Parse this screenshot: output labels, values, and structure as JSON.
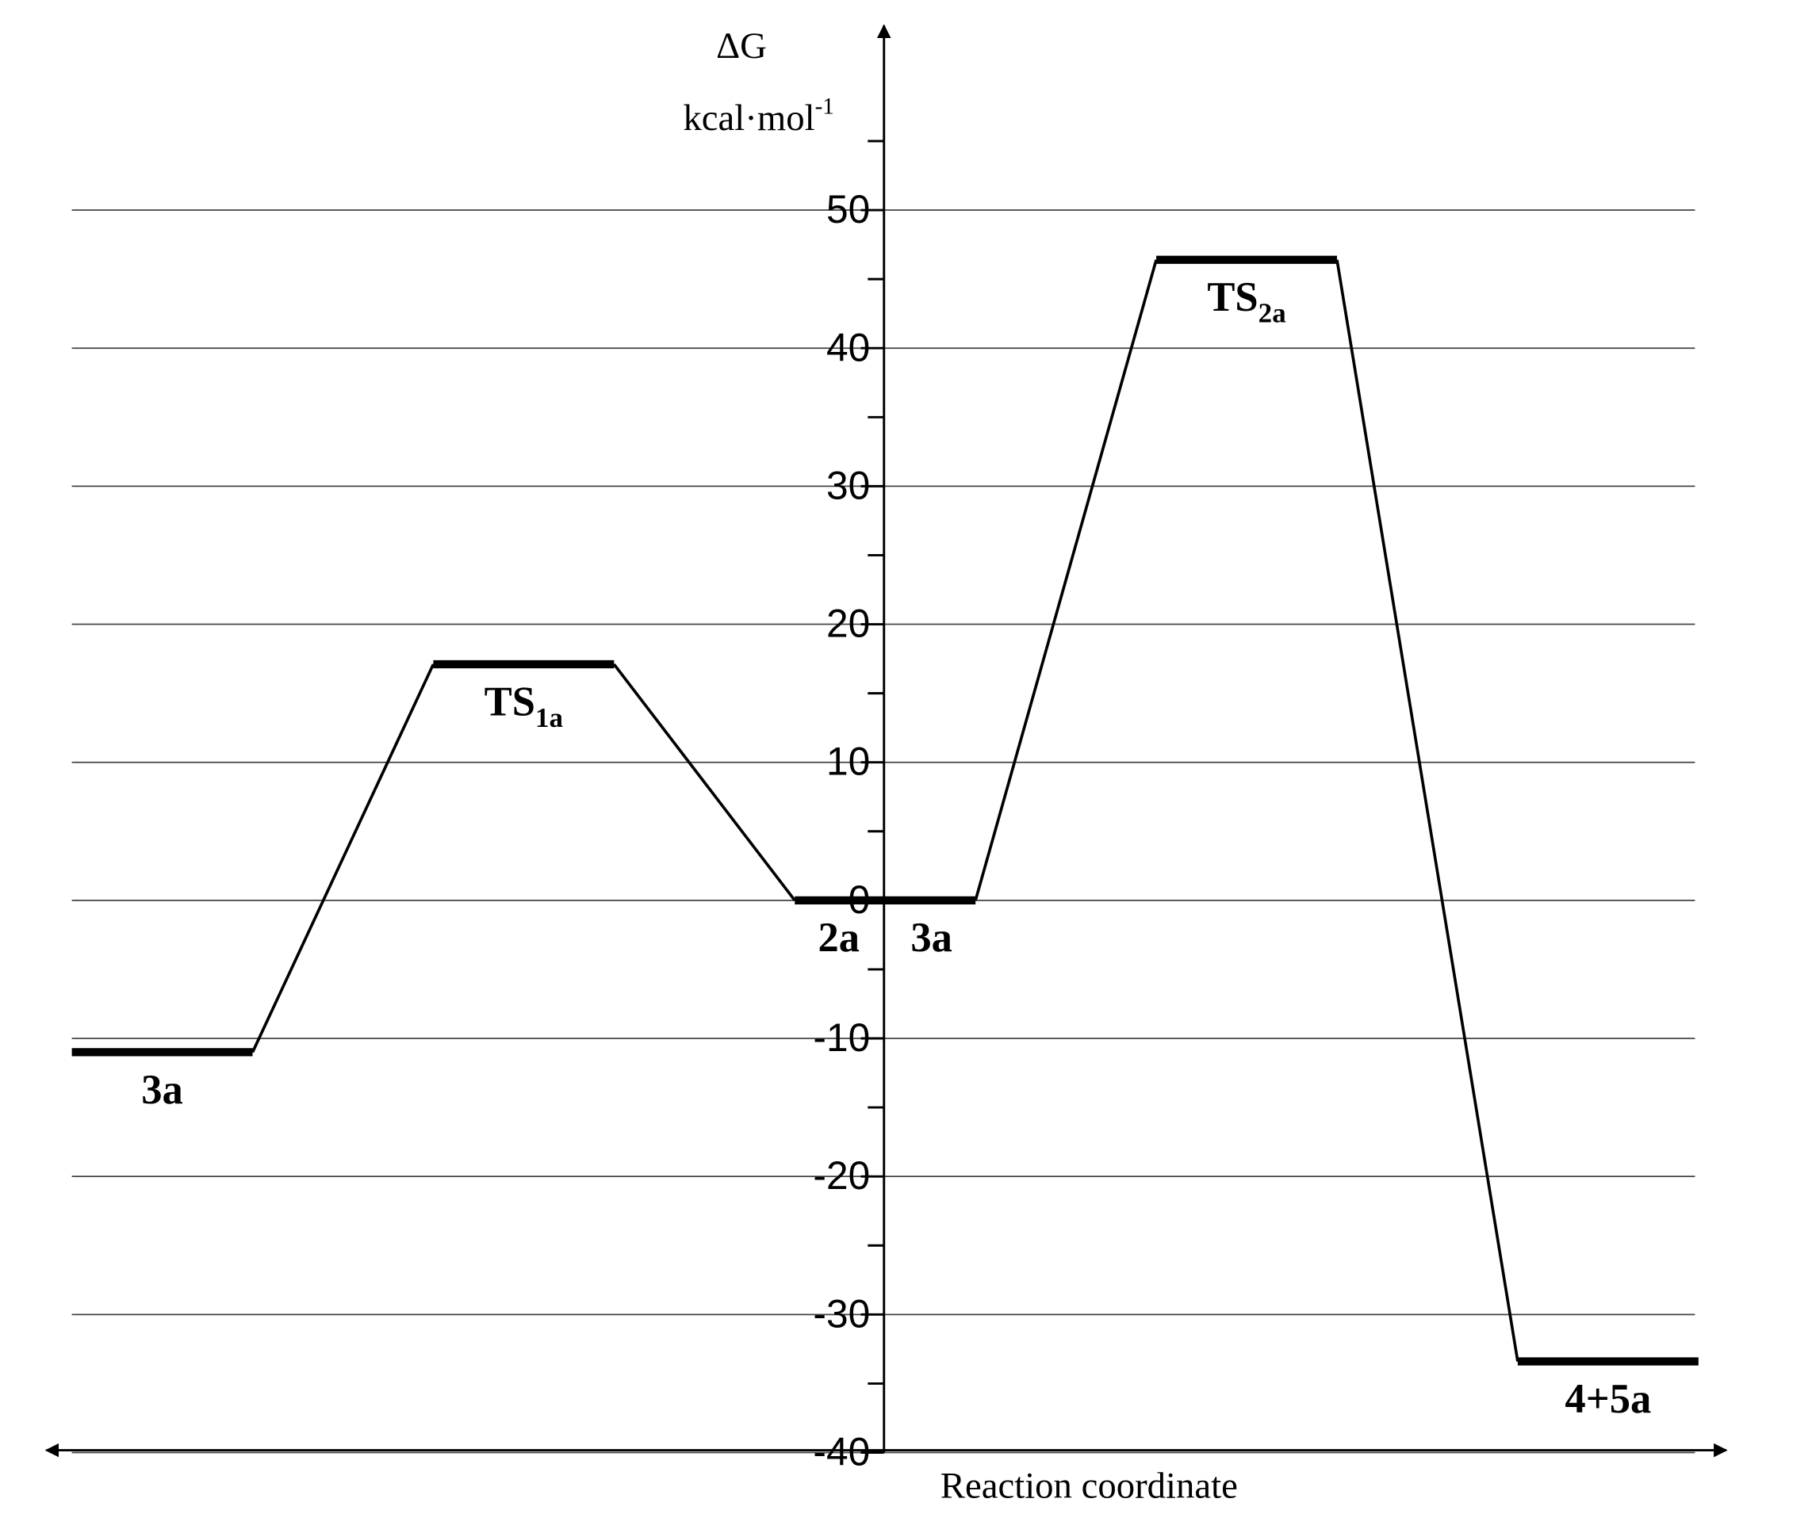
{
  "chart_data": {
    "type": "energy",
    "ylabel": "ΔG",
    "yunit": "kcal·mol",
    "yunit_sup": "-1",
    "xlabel": "Reaction coordinate",
    "ylim": [
      -40,
      62.7
    ],
    "yticks": [
      -40,
      -30,
      -20,
      -10,
      0,
      10,
      20,
      30,
      40,
      50
    ],
    "yminorticks": [
      -35,
      -25,
      -15,
      -5,
      5,
      15,
      25,
      35,
      45,
      55
    ],
    "grid": true,
    "color": "#000000",
    "levels": [
      {
        "value": -11,
        "labels": [
          {
            "text": "3a"
          }
        ]
      },
      {
        "value": 17.1,
        "labels": [
          {
            "text": "TS",
            "sub": "1a"
          }
        ]
      },
      {
        "value": 0,
        "labels": [
          {
            "text": "2a"
          },
          {
            "text": "3a"
          }
        ]
      },
      {
        "value": 46.4,
        "labels": [
          {
            "text": "TS",
            "sub": "2a"
          }
        ]
      },
      {
        "value": -33.4,
        "labels": [
          {
            "text": "4+5a"
          }
        ]
      }
    ]
  }
}
